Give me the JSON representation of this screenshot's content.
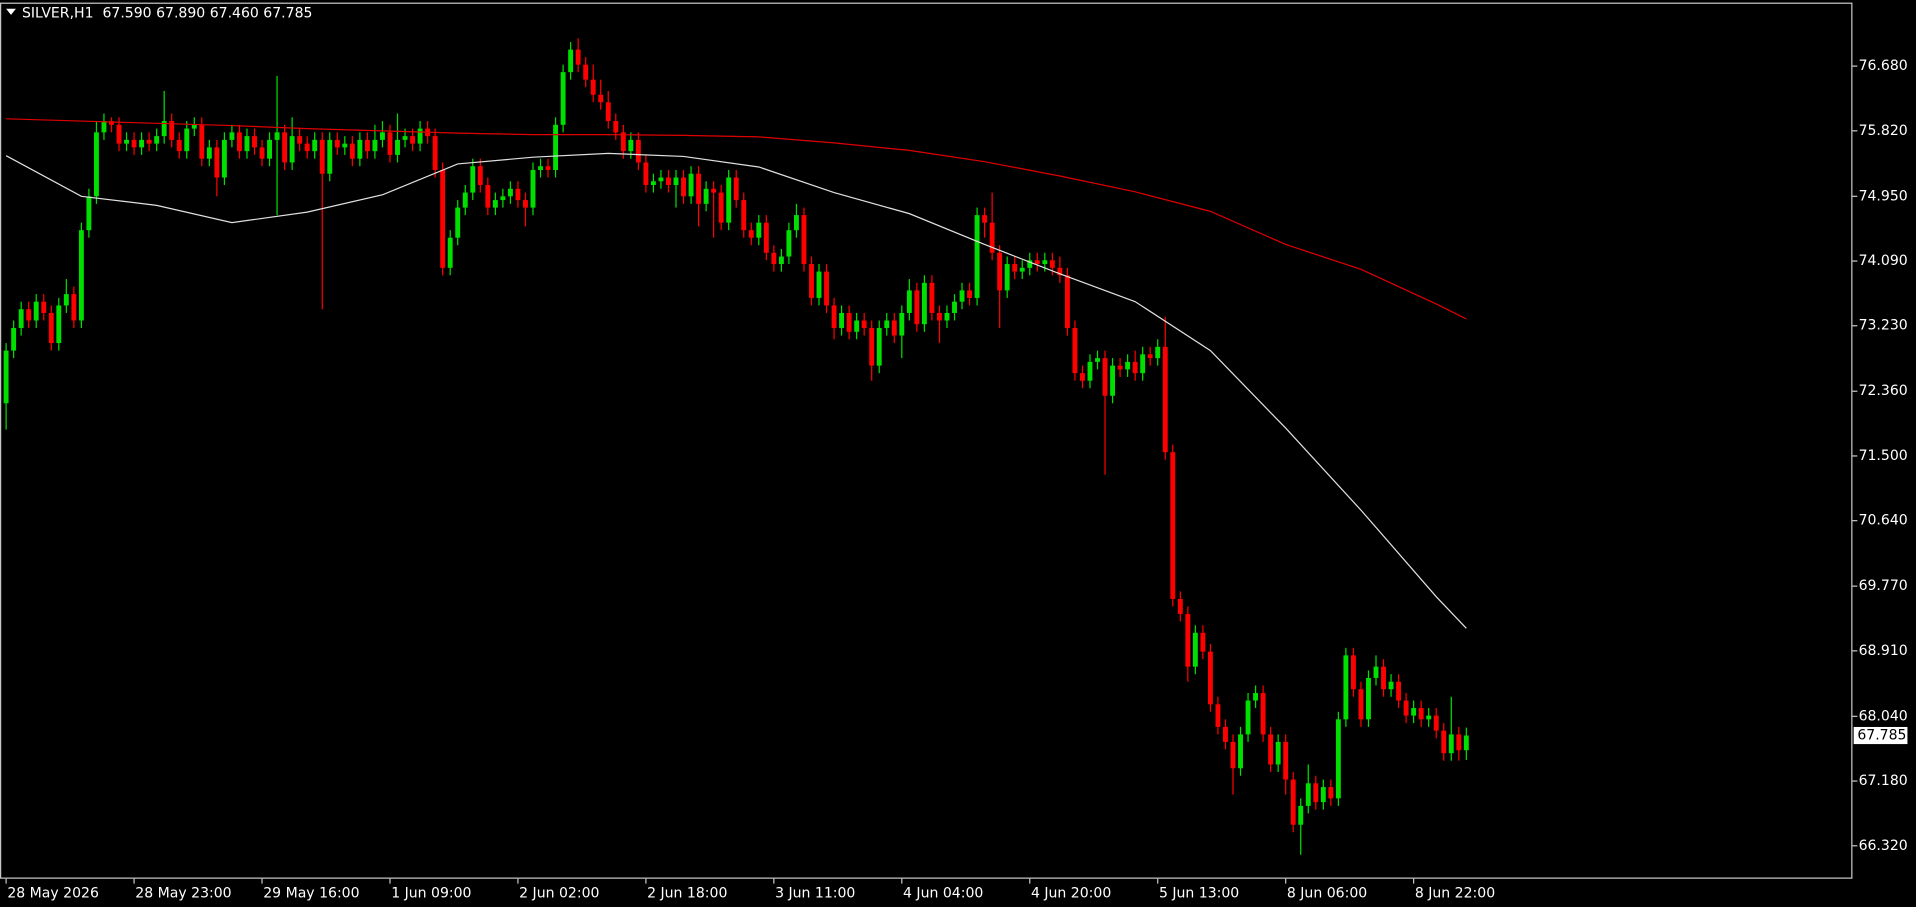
{
  "chart_data": {
    "type": "candlestick",
    "title": "SILVER,H1  67.590 67.890 67.460 67.785",
    "up_color": "#00e000",
    "down_color": "#ff0000",
    "ylim": [
      65.882,
      77.524
    ],
    "yticks": [
      {
        "value": 76.68,
        "label": "76.680"
      },
      {
        "value": 75.82,
        "label": "75.820"
      },
      {
        "value": 74.95,
        "label": "74.950"
      },
      {
        "value": 74.09,
        "label": "74.090"
      },
      {
        "value": 73.23,
        "label": "73.230"
      },
      {
        "value": 72.36,
        "label": "72.360"
      },
      {
        "value": 71.5,
        "label": "71.500"
      },
      {
        "value": 70.64,
        "label": "70.640"
      },
      {
        "value": 69.77,
        "label": "69.770"
      },
      {
        "value": 68.91,
        "label": "68.910"
      },
      {
        "value": 68.04,
        "label": "68.040"
      },
      {
        "value": 67.18,
        "label": "67.180"
      },
      {
        "value": 66.32,
        "label": "66.320"
      }
    ],
    "last_price": 67.785,
    "categories": [
      "28 May 2026",
      null,
      null,
      null,
      null,
      null,
      null,
      null,
      null,
      null,
      null,
      null,
      null,
      null,
      null,
      null,
      null,
      "28 May 23:00",
      null,
      null,
      null,
      null,
      null,
      null,
      null,
      null,
      null,
      null,
      null,
      null,
      null,
      null,
      null,
      null,
      "29 May 16:00",
      null,
      null,
      null,
      null,
      null,
      null,
      null,
      null,
      null,
      null,
      null,
      null,
      null,
      null,
      null,
      null,
      "1 Jun 09:00",
      null,
      null,
      null,
      null,
      null,
      null,
      null,
      null,
      null,
      null,
      null,
      null,
      null,
      null,
      null,
      null,
      "2 Jun 02:00",
      null,
      null,
      null,
      null,
      null,
      null,
      null,
      null,
      null,
      null,
      null,
      null,
      null,
      null,
      null,
      null,
      "2 Jun 18:00",
      null,
      null,
      null,
      null,
      null,
      null,
      null,
      null,
      null,
      null,
      null,
      null,
      null,
      null,
      null,
      null,
      "3 Jun 11:00",
      null,
      null,
      null,
      null,
      null,
      null,
      null,
      null,
      null,
      null,
      null,
      null,
      null,
      null,
      null,
      null,
      "4 Jun 04:00",
      null,
      null,
      null,
      null,
      null,
      null,
      null,
      null,
      null,
      null,
      null,
      null,
      null,
      null,
      null,
      null,
      "4 Jun 20:00",
      null,
      null,
      null,
      null,
      null,
      null,
      null,
      null,
      null,
      null,
      null,
      null,
      null,
      null,
      null,
      null,
      "5 Jun 13:00",
      null,
      null,
      null,
      null,
      null,
      null,
      null,
      null,
      null,
      null,
      null,
      null,
      null,
      null,
      null,
      null,
      "8 Jun 06:00",
      null,
      null,
      null,
      null,
      null,
      null,
      null,
      null,
      null,
      null,
      null,
      null,
      null,
      null,
      null,
      null,
      "8 Jun 22:00",
      null,
      null,
      null,
      null,
      null,
      null,
      null
    ],
    "candles": [
      [
        72.2,
        73.0,
        71.85,
        72.9
      ],
      [
        72.9,
        73.3,
        72.8,
        73.2
      ],
      [
        73.2,
        73.55,
        73.1,
        73.45
      ],
      [
        73.45,
        73.55,
        73.2,
        73.3
      ],
      [
        73.3,
        73.65,
        73.2,
        73.55
      ],
      [
        73.55,
        73.65,
        73.3,
        73.4
      ],
      [
        73.4,
        73.5,
        72.9,
        73.0
      ],
      [
        73.0,
        73.6,
        72.9,
        73.5
      ],
      [
        73.5,
        73.85,
        73.4,
        73.65
      ],
      [
        73.65,
        73.75,
        73.2,
        73.3
      ],
      [
        73.3,
        74.6,
        73.2,
        74.5
      ],
      [
        74.5,
        75.05,
        74.4,
        74.95
      ],
      [
        74.95,
        75.95,
        74.85,
        75.8
      ],
      [
        75.8,
        76.05,
        75.7,
        75.95
      ],
      [
        75.95,
        76.0,
        75.8,
        75.9
      ],
      [
        75.9,
        76.0,
        75.55,
        75.65
      ],
      [
        75.65,
        75.8,
        75.55,
        75.7
      ],
      [
        75.7,
        75.8,
        75.5,
        75.6
      ],
      [
        75.6,
        75.8,
        75.5,
        75.7
      ],
      [
        75.7,
        75.8,
        75.55,
        75.65
      ],
      [
        75.65,
        75.85,
        75.55,
        75.75
      ],
      [
        75.75,
        76.35,
        75.65,
        75.95
      ],
      [
        75.95,
        76.05,
        75.6,
        75.7
      ],
      [
        75.7,
        75.8,
        75.45,
        75.55
      ],
      [
        75.55,
        75.95,
        75.45,
        75.85
      ],
      [
        75.85,
        76.0,
        75.75,
        75.9
      ],
      [
        75.9,
        76.0,
        75.35,
        75.45
      ],
      [
        75.45,
        75.7,
        75.35,
        75.6
      ],
      [
        75.6,
        75.7,
        74.95,
        75.2
      ],
      [
        75.2,
        75.8,
        75.1,
        75.7
      ],
      [
        75.7,
        75.9,
        75.6,
        75.8
      ],
      [
        75.8,
        75.9,
        75.45,
        75.55
      ],
      [
        75.55,
        75.85,
        75.45,
        75.75
      ],
      [
        75.75,
        75.85,
        75.5,
        75.6
      ],
      [
        75.6,
        75.7,
        75.35,
        75.45
      ],
      [
        75.45,
        75.8,
        75.35,
        75.7
      ],
      [
        75.7,
        76.55,
        74.7,
        75.8
      ],
      [
        75.8,
        75.9,
        75.3,
        75.4
      ],
      [
        75.4,
        76.0,
        75.3,
        75.75
      ],
      [
        75.75,
        75.85,
        75.55,
        75.65
      ],
      [
        75.65,
        75.75,
        75.45,
        75.55
      ],
      [
        75.55,
        75.8,
        75.45,
        75.7
      ],
      [
        75.7,
        75.8,
        73.45,
        75.25
      ],
      [
        75.25,
        75.8,
        75.15,
        75.7
      ],
      [
        75.7,
        75.8,
        75.5,
        75.6
      ],
      [
        75.6,
        75.75,
        75.5,
        75.65
      ],
      [
        75.65,
        75.75,
        75.35,
        75.45
      ],
      [
        75.45,
        75.8,
        75.35,
        75.7
      ],
      [
        75.7,
        75.8,
        75.45,
        75.55
      ],
      [
        75.55,
        75.9,
        75.45,
        75.7
      ],
      [
        75.7,
        75.95,
        75.6,
        75.8
      ],
      [
        75.8,
        75.9,
        75.4,
        75.5
      ],
      [
        75.5,
        76.05,
        75.4,
        75.7
      ],
      [
        75.7,
        75.85,
        75.6,
        75.75
      ],
      [
        75.75,
        75.85,
        75.55,
        75.65
      ],
      [
        75.65,
        75.95,
        75.55,
        75.85
      ],
      [
        75.85,
        75.95,
        75.65,
        75.75
      ],
      [
        75.75,
        75.85,
        75.2,
        75.3
      ],
      [
        75.3,
        75.4,
        73.9,
        74.0
      ],
      [
        74.0,
        74.5,
        73.9,
        74.4
      ],
      [
        74.4,
        74.9,
        74.3,
        74.8
      ],
      [
        74.8,
        75.1,
        74.7,
        75.0
      ],
      [
        75.0,
        75.45,
        74.9,
        75.35
      ],
      [
        75.35,
        75.45,
        75.0,
        75.1
      ],
      [
        75.1,
        75.2,
        74.7,
        74.8
      ],
      [
        74.8,
        75.0,
        74.7,
        74.9
      ],
      [
        74.9,
        75.05,
        74.8,
        74.95
      ],
      [
        74.95,
        75.15,
        74.85,
        75.05
      ],
      [
        75.05,
        75.15,
        74.8,
        74.9
      ],
      [
        74.9,
        75.0,
        74.55,
        74.8
      ],
      [
        74.8,
        75.4,
        74.7,
        75.3
      ],
      [
        75.3,
        75.45,
        75.2,
        75.35
      ],
      [
        75.35,
        75.45,
        75.2,
        75.3
      ],
      [
        75.3,
        76.0,
        75.2,
        75.9
      ],
      [
        75.9,
        76.7,
        75.8,
        76.6
      ],
      [
        76.6,
        77.0,
        76.5,
        76.9
      ],
      [
        76.9,
        77.05,
        76.6,
        76.7
      ],
      [
        76.7,
        76.8,
        76.4,
        76.5
      ],
      [
        76.5,
        76.7,
        76.2,
        76.3
      ],
      [
        76.3,
        76.5,
        76.1,
        76.2
      ],
      [
        76.2,
        76.35,
        75.85,
        75.95
      ],
      [
        75.95,
        76.05,
        75.7,
        75.8
      ],
      [
        75.8,
        75.9,
        75.45,
        75.55
      ],
      [
        75.55,
        75.8,
        75.45,
        75.7
      ],
      [
        75.7,
        75.8,
        75.3,
        75.4
      ],
      [
        75.4,
        75.5,
        75.0,
        75.1
      ],
      [
        75.1,
        75.25,
        75.0,
        75.15
      ],
      [
        75.15,
        75.3,
        75.05,
        75.2
      ],
      [
        75.2,
        75.3,
        75.0,
        75.1
      ],
      [
        75.1,
        75.3,
        74.8,
        75.2
      ],
      [
        75.2,
        75.3,
        74.85,
        74.95
      ],
      [
        74.95,
        75.35,
        74.85,
        75.25
      ],
      [
        75.25,
        75.35,
        74.55,
        74.85
      ],
      [
        74.85,
        75.15,
        74.75,
        75.05
      ],
      [
        75.05,
        75.15,
        74.4,
        75.0
      ],
      [
        75.0,
        75.1,
        74.5,
        74.6
      ],
      [
        74.6,
        75.3,
        74.5,
        75.2
      ],
      [
        75.2,
        75.3,
        74.8,
        74.9
      ],
      [
        74.9,
        75.0,
        74.4,
        74.5
      ],
      [
        74.5,
        74.6,
        74.3,
        74.4
      ],
      [
        74.4,
        74.7,
        74.3,
        74.6
      ],
      [
        74.6,
        74.7,
        74.1,
        74.2
      ],
      [
        74.2,
        74.3,
        73.95,
        74.05
      ],
      [
        74.05,
        74.25,
        73.95,
        74.15
      ],
      [
        74.15,
        74.6,
        74.05,
        74.5
      ],
      [
        74.5,
        74.85,
        74.4,
        74.7
      ],
      [
        74.7,
        74.8,
        73.95,
        74.05
      ],
      [
        74.05,
        74.15,
        73.5,
        73.6
      ],
      [
        73.6,
        74.05,
        73.5,
        73.95
      ],
      [
        73.95,
        74.05,
        73.4,
        73.5
      ],
      [
        73.5,
        73.6,
        73.05,
        73.2
      ],
      [
        73.2,
        73.5,
        73.1,
        73.4
      ],
      [
        73.4,
        73.5,
        73.05,
        73.15
      ],
      [
        73.15,
        73.4,
        73.05,
        73.3
      ],
      [
        73.3,
        73.4,
        73.1,
        73.2
      ],
      [
        73.2,
        73.3,
        72.5,
        72.7
      ],
      [
        72.7,
        73.3,
        72.6,
        73.2
      ],
      [
        73.2,
        73.4,
        73.1,
        73.3
      ],
      [
        73.3,
        73.4,
        73.0,
        73.1
      ],
      [
        73.1,
        73.5,
        72.8,
        73.4
      ],
      [
        73.4,
        73.85,
        73.3,
        73.7
      ],
      [
        73.7,
        73.8,
        73.15,
        73.25
      ],
      [
        73.25,
        73.9,
        73.15,
        73.8
      ],
      [
        73.8,
        73.9,
        73.3,
        73.4
      ],
      [
        73.4,
        73.5,
        73.0,
        73.3
      ],
      [
        73.3,
        73.5,
        73.2,
        73.4
      ],
      [
        73.4,
        73.65,
        73.3,
        73.55
      ],
      [
        73.55,
        73.8,
        73.45,
        73.7
      ],
      [
        73.7,
        73.8,
        73.5,
        73.6
      ],
      [
        73.6,
        74.8,
        73.5,
        74.7
      ],
      [
        74.7,
        74.8,
        74.4,
        74.6
      ],
      [
        74.6,
        75.0,
        74.1,
        74.2
      ],
      [
        74.2,
        74.3,
        73.2,
        73.7
      ],
      [
        73.7,
        74.15,
        73.6,
        74.05
      ],
      [
        74.05,
        74.15,
        73.85,
        73.95
      ],
      [
        73.95,
        74.1,
        73.85,
        74.0
      ],
      [
        74.0,
        74.2,
        73.9,
        74.1
      ],
      [
        74.1,
        74.2,
        73.95,
        74.05
      ],
      [
        74.05,
        74.2,
        73.95,
        74.1
      ],
      [
        74.1,
        74.2,
        73.9,
        74.0
      ],
      [
        74.0,
        74.15,
        73.8,
        73.9
      ],
      [
        73.9,
        74.0,
        73.1,
        73.2
      ],
      [
        73.2,
        73.3,
        72.5,
        72.6
      ],
      [
        72.6,
        72.7,
        72.4,
        72.5
      ],
      [
        72.5,
        72.85,
        72.4,
        72.75
      ],
      [
        72.75,
        72.9,
        72.65,
        72.8
      ],
      [
        72.8,
        72.9,
        71.25,
        72.3
      ],
      [
        72.3,
        72.8,
        72.2,
        72.7
      ],
      [
        72.7,
        72.8,
        72.55,
        72.65
      ],
      [
        72.65,
        72.85,
        72.55,
        72.75
      ],
      [
        72.75,
        72.9,
        72.5,
        72.6
      ],
      [
        72.6,
        72.95,
        72.5,
        72.85
      ],
      [
        72.85,
        72.95,
        72.7,
        72.8
      ],
      [
        72.8,
        73.05,
        72.7,
        72.95
      ],
      [
        72.95,
        73.35,
        71.45,
        71.55
      ],
      [
        71.55,
        71.65,
        69.5,
        69.6
      ],
      [
        69.6,
        69.7,
        69.3,
        69.4
      ],
      [
        69.4,
        69.5,
        68.5,
        68.7
      ],
      [
        68.7,
        69.25,
        68.6,
        69.15
      ],
      [
        69.15,
        69.25,
        68.8,
        68.9
      ],
      [
        68.9,
        69.0,
        68.1,
        68.2
      ],
      [
        68.2,
        68.3,
        67.8,
        67.9
      ],
      [
        67.9,
        68.0,
        67.6,
        67.7
      ],
      [
        67.7,
        67.8,
        67.0,
        67.35
      ],
      [
        67.35,
        67.9,
        67.25,
        67.8
      ],
      [
        67.8,
        68.35,
        67.7,
        68.25
      ],
      [
        68.25,
        68.45,
        68.15,
        68.35
      ],
      [
        68.35,
        68.45,
        67.7,
        67.8
      ],
      [
        67.8,
        67.9,
        67.3,
        67.4
      ],
      [
        67.4,
        67.8,
        67.3,
        67.7
      ],
      [
        67.7,
        67.8,
        67.0,
        67.2
      ],
      [
        67.2,
        67.3,
        66.5,
        66.6
      ],
      [
        66.6,
        66.95,
        66.2,
        66.85
      ],
      [
        66.85,
        67.4,
        66.75,
        67.15
      ],
      [
        67.15,
        67.25,
        66.8,
        66.9
      ],
      [
        66.9,
        67.2,
        66.8,
        67.1
      ],
      [
        67.1,
        67.2,
        66.85,
        66.95
      ],
      [
        66.95,
        68.1,
        66.85,
        68.0
      ],
      [
        68.0,
        68.95,
        67.9,
        68.85
      ],
      [
        68.85,
        68.95,
        68.3,
        68.4
      ],
      [
        68.4,
        68.5,
        67.9,
        68.0
      ],
      [
        68.0,
        68.65,
        67.9,
        68.55
      ],
      [
        68.55,
        68.85,
        68.45,
        68.7
      ],
      [
        68.7,
        68.8,
        68.3,
        68.4
      ],
      [
        68.4,
        68.6,
        68.3,
        68.5
      ],
      [
        68.5,
        68.6,
        68.15,
        68.25
      ],
      [
        68.25,
        68.35,
        67.95,
        68.05
      ],
      [
        68.05,
        68.25,
        67.95,
        68.15
      ],
      [
        68.15,
        68.25,
        67.9,
        68.0
      ],
      [
        68.0,
        68.15,
        67.9,
        68.05
      ],
      [
        68.05,
        68.15,
        67.75,
        67.85
      ],
      [
        67.85,
        67.95,
        67.45,
        67.55
      ],
      [
        67.55,
        68.3,
        67.45,
        67.8
      ],
      [
        67.8,
        67.9,
        67.45,
        67.59
      ],
      [
        67.59,
        67.89,
        67.46,
        67.785
      ]
    ],
    "lines": [
      {
        "color": "#e0e0e0",
        "x": [
          0,
          10,
          20,
          30,
          40,
          50,
          60,
          70,
          80,
          90,
          100,
          110,
          120,
          130,
          140,
          150,
          160,
          170,
          180,
          190,
          194
        ],
        "values": [
          75.49,
          74.95,
          74.83,
          74.6,
          74.74,
          74.97,
          75.38,
          75.47,
          75.52,
          75.48,
          75.34,
          75.0,
          74.72,
          74.31,
          73.92,
          73.55,
          72.9,
          71.87,
          70.78,
          69.63,
          69.21
        ]
      },
      {
        "color": "#e00000",
        "x": [
          0,
          10,
          20,
          30,
          40,
          50,
          60,
          70,
          80,
          90,
          100,
          110,
          120,
          130,
          140,
          150,
          160,
          170,
          180,
          190,
          194
        ],
        "values": [
          75.98,
          75.95,
          75.92,
          75.89,
          75.85,
          75.82,
          75.79,
          75.77,
          75.77,
          75.76,
          75.74,
          75.66,
          75.56,
          75.41,
          75.22,
          75.01,
          74.75,
          74.31,
          73.98,
          73.52,
          73.32
        ]
      }
    ]
  }
}
